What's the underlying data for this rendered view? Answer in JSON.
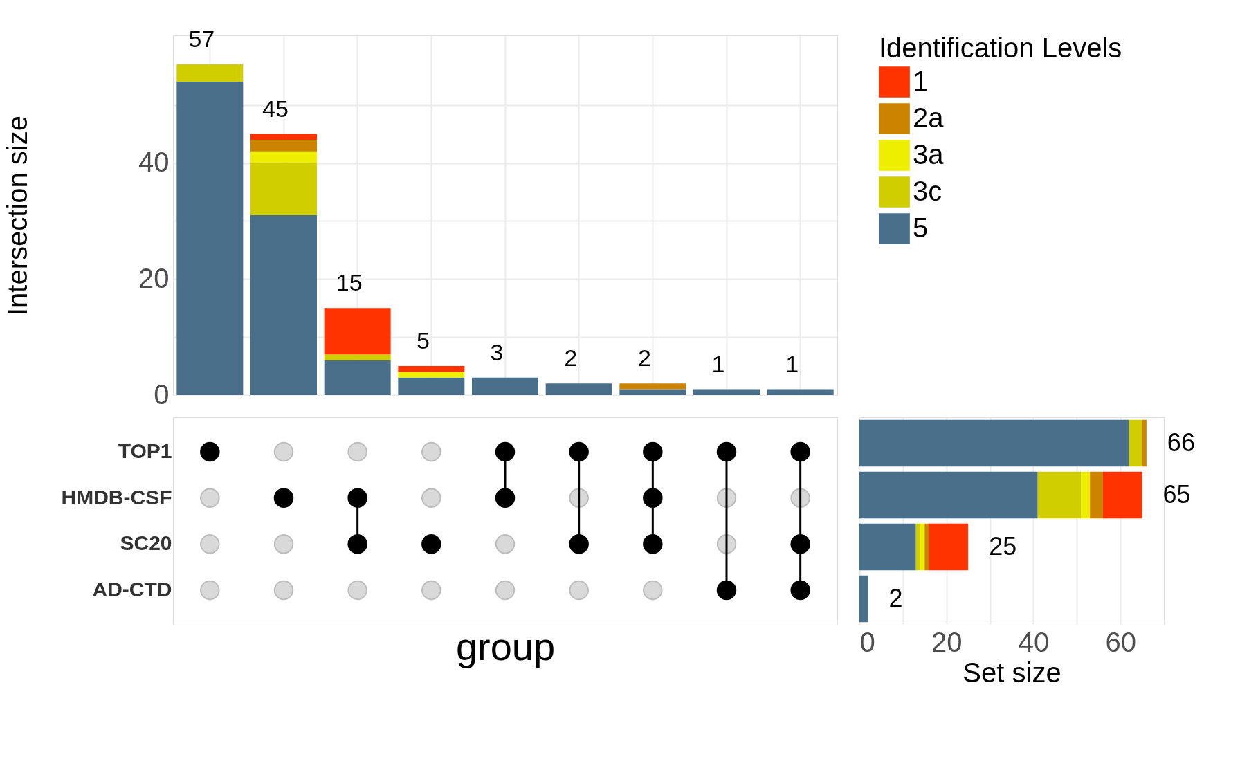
{
  "chart_data": [
    {
      "type": "bar",
      "ylabel": "Intersection size",
      "categories": [
        null,
        null,
        null,
        null,
        null,
        null,
        null,
        null,
        null
      ],
      "stacked": true,
      "ylim": [
        0,
        62
      ],
      "yticks": [
        0,
        {
          "value": 10,
          "label": null
        },
        20,
        {
          "value": 30,
          "label": null
        },
        40,
        {
          "value": 50,
          "label": null
        }
      ],
      "grid": true,
      "tick_labels": "y",
      "legend": "top right",
      "legend_title": "Identification Levels",
      "series": [
        {
          "name": "5",
          "color": "#4a6f8a",
          "values": [
            54,
            31,
            6,
            3,
            3,
            2,
            1,
            1,
            1
          ]
        },
        {
          "name": "3c",
          "color": "#d0cd00",
          "values": [
            3,
            9,
            1,
            0,
            0,
            0,
            0,
            0,
            0
          ]
        },
        {
          "name": "3a",
          "color": "#eeee00",
          "values": [
            0,
            2,
            0,
            1,
            0,
            0,
            0,
            0,
            0
          ]
        },
        {
          "name": "2a",
          "color": "#cc8400",
          "values": [
            0,
            2,
            0,
            0,
            0,
            0,
            1,
            0,
            0
          ]
        },
        {
          "name": "1",
          "color": "#ff3300",
          "values": [
            0,
            1,
            8,
            1,
            0,
            0,
            0,
            0,
            0
          ]
        }
      ],
      "totals": [
        "57",
        "45",
        "15",
        "5",
        "3",
        "2",
        "2",
        "1",
        "1"
      ]
    },
    {
      "type": "other",
      "xlabel": "group",
      "categories": [
        null,
        null,
        null,
        null,
        null,
        null,
        null,
        null,
        null
      ],
      "y_categories": [
        "TOP1",
        "HMDB-CSF",
        "SC20",
        "AD-CTD"
      ],
      "cells": [
        [
          true,
          false,
          false,
          false,
          true,
          true,
          true,
          true,
          true
        ],
        [
          false,
          true,
          true,
          false,
          true,
          false,
          true,
          false,
          false
        ],
        [
          false,
          false,
          true,
          true,
          false,
          true,
          true,
          false,
          true
        ],
        [
          false,
          false,
          false,
          false,
          false,
          false,
          false,
          true,
          true
        ]
      ]
    },
    {
      "type": "bar",
      "orientation": "horizontal",
      "stacked": true,
      "xlabel": "Set size",
      "categories": [
        null,
        null,
        null,
        null
      ],
      "xlim": [
        0,
        70
      ],
      "xticks": [
        0,
        {
          "value": 10,
          "label": null
        },
        20,
        {
          "value": 30,
          "label": null
        },
        40,
        {
          "value": 50,
          "label": null
        },
        60
      ],
      "grid": "x",
      "tick_labels": "x",
      "legend": false,
      "series": [
        {
          "color": "#4a6f8a",
          "values": [
            62,
            41,
            13,
            2
          ]
        },
        {
          "color": "#d0cd00",
          "values": [
            3,
            10,
            1,
            0
          ]
        },
        {
          "color": "#eeee00",
          "values": [
            0,
            2,
            1,
            0
          ]
        },
        {
          "color": "#cc8400",
          "values": [
            1,
            3,
            1,
            0
          ]
        },
        {
          "color": "#ff3300",
          "values": [
            0,
            9,
            9,
            0
          ]
        }
      ],
      "totals": [
        "66",
        "65",
        "25",
        "2"
      ]
    }
  ]
}
